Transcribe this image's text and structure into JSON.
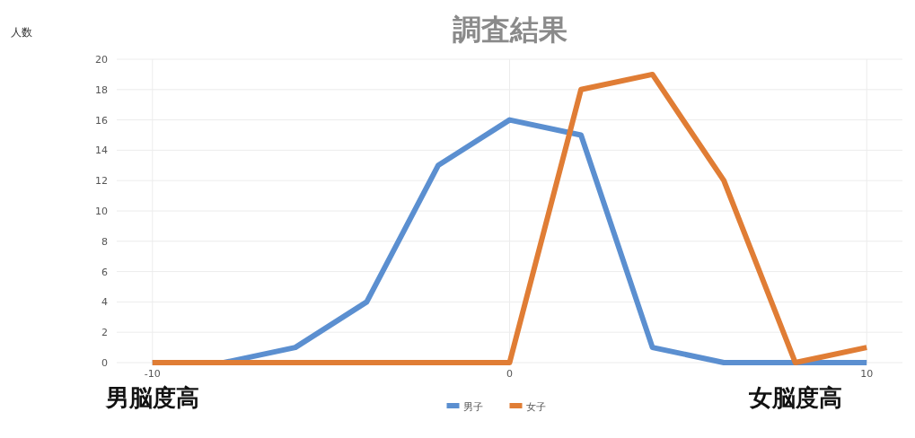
{
  "chart_data": {
    "type": "line",
    "title": "調査結果",
    "x": [
      -10,
      -8,
      -6,
      -4,
      -2,
      0,
      2,
      4,
      6,
      8,
      10
    ],
    "series": [
      {
        "name": "男子",
        "color": "#5b8fd0",
        "values": [
          0,
          0,
          1,
          4,
          13,
          16,
          15,
          1,
          0,
          0,
          0
        ]
      },
      {
        "name": "女子",
        "color": "#e07d35",
        "values": [
          0,
          0,
          0,
          0,
          0,
          0,
          18,
          19,
          12,
          0,
          1
        ]
      }
    ],
    "xlim": [
      -11,
      11
    ],
    "xticks": [
      -10,
      0,
      10
    ],
    "ylim": [
      0,
      20
    ],
    "yticks": [
      0,
      2,
      4,
      6,
      8,
      10,
      12,
      14,
      16,
      18,
      20
    ],
    "grid": true,
    "legend": "bottom",
    "marker": "none",
    "line_style": "solid",
    "annotations": [
      "人数",
      {
        "text": "男脳度高",
        "x": -10,
        "y": 0
      },
      {
        "text": "女脳度高",
        "x": 8,
        "y": 0
      }
    ]
  }
}
